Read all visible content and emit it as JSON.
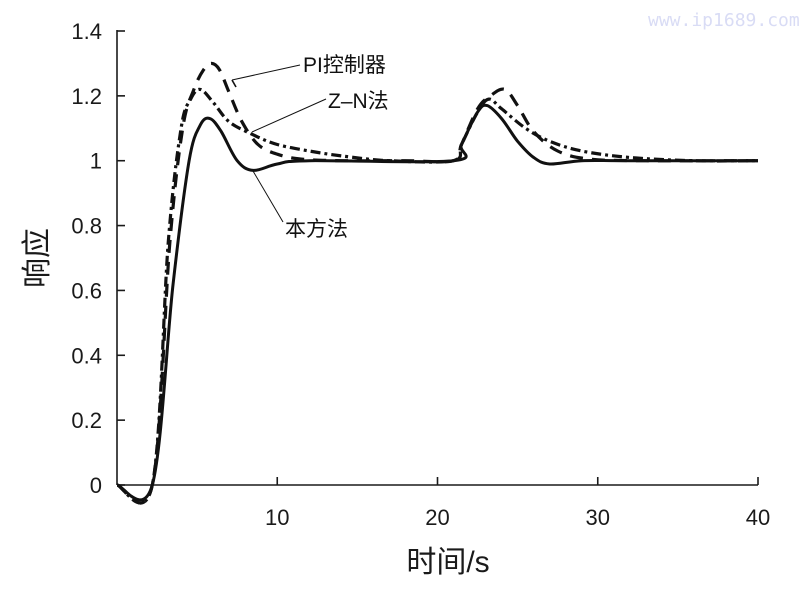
{
  "watermark": "www.ip1689.com",
  "chart_data": {
    "type": "line",
    "title": "",
    "xlabel": "时间/s",
    "ylabel": "响应",
    "xlim": [
      0,
      40
    ],
    "ylim": [
      0,
      1.4
    ],
    "xticks": [
      10,
      20,
      30,
      40
    ],
    "xtick_labels": [
      "10",
      "20",
      "30",
      "40"
    ],
    "yticks": [
      0,
      0.2,
      0.4,
      0.6,
      0.8,
      1,
      1.2,
      1.4
    ],
    "ytick_labels": [
      "0",
      "0.2",
      "0.4",
      "0.6",
      "0.8",
      "1",
      "1.2",
      "1.4"
    ],
    "grid": false,
    "legend": "annotations",
    "annotations": [
      {
        "text": "PI控制器",
        "points_to": "PI控制器"
      },
      {
        "text": "Z–N法",
        "points_to": "Z-N法"
      },
      {
        "text": "本方法",
        "points_to": "本方法"
      }
    ],
    "series": [
      {
        "name": "本方法",
        "style": "solid",
        "x": [
          0,
          2.2,
          3.5,
          4.5,
          5.2,
          5.8,
          6.5,
          7.5,
          8.5,
          10,
          12,
          21,
          21.5,
          22.5,
          23.1,
          24,
          25,
          26,
          27,
          29,
          32,
          40
        ],
        "y": [
          0,
          0,
          0.62,
          1.0,
          1.11,
          1.13,
          1.09,
          1.0,
          0.97,
          0.99,
          1.0,
          1.0,
          1.05,
          1.15,
          1.17,
          1.13,
          1.06,
          1.01,
          0.99,
          1.0,
          1.0,
          1.0
        ]
      },
      {
        "name": "Z-N法",
        "style": "dash-dot",
        "x": [
          0,
          2.2,
          3.2,
          4.0,
          4.6,
          5.2,
          6.0,
          7.0,
          8.5,
          10,
          12,
          14,
          17,
          21,
          21.5,
          22.5,
          23.2,
          24,
          25.5,
          27,
          29,
          32,
          36,
          40
        ],
        "y": [
          0,
          0,
          0.75,
          1.1,
          1.19,
          1.22,
          1.18,
          1.12,
          1.08,
          1.05,
          1.03,
          1.015,
          1.0,
          1.0,
          1.05,
          1.15,
          1.19,
          1.16,
          1.1,
          1.06,
          1.03,
          1.01,
          1.0,
          1.0
        ]
      },
      {
        "name": "PI控制器",
        "style": "dashed",
        "x": [
          0,
          2.2,
          3.3,
          4.1,
          4.8,
          5.4,
          5.9,
          6.4,
          7.0,
          7.8,
          8.8,
          10,
          11.5,
          14,
          18,
          21,
          21.5,
          22.5,
          23.3,
          24.2,
          25,
          26,
          27.5,
          29.5,
          33,
          40
        ],
        "y": [
          0,
          0,
          0.75,
          1.1,
          1.22,
          1.28,
          1.3,
          1.28,
          1.21,
          1.12,
          1.05,
          1.02,
          1.005,
          1.0,
          1.0,
          1.0,
          1.05,
          1.16,
          1.2,
          1.22,
          1.17,
          1.09,
          1.03,
          1.005,
          1.0,
          1.0
        ]
      }
    ]
  }
}
